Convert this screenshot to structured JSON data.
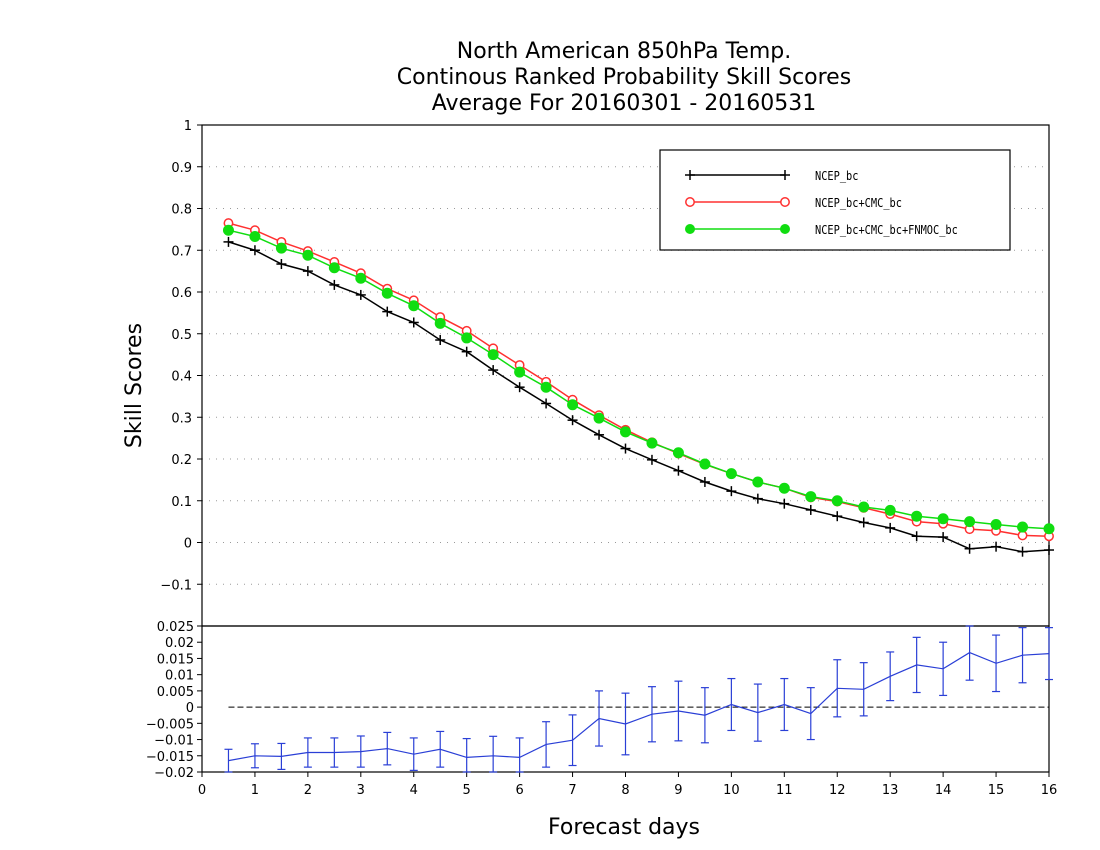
{
  "chart_data": [
    {
      "type": "line",
      "title": [
        "North American 850hPa Temp.",
        "Continous Ranked Probability Skill Scores",
        "Average For 20160301 - 20160531"
      ],
      "ylabel": "Skill Scores",
      "xlim": [
        0,
        16
      ],
      "ylim": [
        -0.2,
        1
      ],
      "yticks": [
        "1",
        "0.9",
        "0.8",
        "0.7",
        "0.6",
        "0.5",
        "0.4",
        "0.3",
        "0.2",
        "0.1",
        "0",
        "−0.1"
      ],
      "grid": true,
      "legend_position": "top-right",
      "x": [
        0.5,
        1,
        1.5,
        2,
        2.5,
        3,
        3.5,
        4,
        4.5,
        5,
        5.5,
        6,
        6.5,
        7,
        7.5,
        8,
        8.5,
        9,
        9.5,
        10,
        10.5,
        11,
        11.5,
        12,
        12.5,
        13,
        13.5,
        14,
        14.5,
        15,
        15.5,
        16
      ],
      "series": [
        {
          "name": "NCEP_bc",
          "color": "#000000",
          "marker": "plus",
          "values": [
            0.72,
            0.7,
            0.667,
            0.65,
            0.617,
            0.593,
            0.553,
            0.527,
            0.485,
            0.457,
            0.413,
            0.372,
            0.333,
            0.293,
            0.258,
            0.225,
            0.198,
            0.172,
            0.145,
            0.123,
            0.105,
            0.093,
            0.078,
            0.063,
            0.048,
            0.035,
            0.015,
            0.013,
            -0.015,
            -0.01,
            -0.022,
            -0.018
          ]
        },
        {
          "name": "NCEP_bc+CMC_bc",
          "color": "#ff3030",
          "marker": "open-circle",
          "values": [
            0.765,
            0.748,
            0.72,
            0.698,
            0.672,
            0.645,
            0.608,
            0.58,
            0.54,
            0.507,
            0.465,
            0.425,
            0.385,
            0.342,
            0.305,
            0.27,
            0.24,
            0.213,
            0.187,
            0.165,
            0.145,
            0.13,
            0.108,
            0.098,
            0.083,
            0.068,
            0.05,
            0.045,
            0.032,
            0.028,
            0.017,
            0.015
          ]
        },
        {
          "name": "NCEP_bc+CMC_bc+FNMOC_bc",
          "color": "#10dd10",
          "marker": "filled-circle",
          "values": [
            0.748,
            0.733,
            0.705,
            0.688,
            0.658,
            0.633,
            0.597,
            0.567,
            0.525,
            0.49,
            0.45,
            0.408,
            0.372,
            0.33,
            0.298,
            0.265,
            0.238,
            0.215,
            0.188,
            0.165,
            0.145,
            0.13,
            0.11,
            0.1,
            0.085,
            0.077,
            0.063,
            0.057,
            0.05,
            0.043,
            0.037,
            0.033
          ]
        }
      ]
    },
    {
      "type": "line",
      "xlabel": "Forecast days",
      "xlim": [
        0,
        16
      ],
      "xticks": [
        "0",
        "1",
        "2",
        "3",
        "4",
        "5",
        "6",
        "7",
        "8",
        "9",
        "10",
        "11",
        "12",
        "13",
        "14",
        "15",
        "16"
      ],
      "ylim": [
        -0.02,
        0.025
      ],
      "yticks": [
        "0.025",
        "0.02",
        "0.015",
        "0.01",
        "0.005",
        "0",
        "−0.005",
        "−0.01",
        "−0.015",
        "−0.02"
      ],
      "zero_line": true,
      "series": [
        {
          "color": "#2a3fd6",
          "x": [
            0.5,
            1,
            1.5,
            2,
            2.5,
            3,
            3.5,
            4,
            4.5,
            5,
            5.5,
            6,
            6.5,
            7,
            7.5,
            8,
            8.5,
            9,
            9.5,
            10,
            10.5,
            11,
            11.5,
            12,
            12.5,
            13,
            13.5,
            14,
            14.5,
            15,
            15.5,
            16
          ],
          "values": [
            -0.0165,
            -0.015,
            -0.0152,
            -0.014,
            -0.014,
            -0.0137,
            -0.0128,
            -0.0145,
            -0.013,
            -0.0155,
            -0.015,
            -0.0155,
            -0.0115,
            -0.0102,
            -0.0035,
            -0.0052,
            -0.0022,
            -0.0012,
            -0.0025,
            0.0008,
            -0.0017,
            0.0008,
            -0.002,
            0.0058,
            0.0055,
            0.0095,
            0.013,
            0.0118,
            0.0168,
            0.0135,
            0.016,
            0.0165
          ],
          "error": [
            0.0035,
            0.0037,
            0.004,
            0.0045,
            0.0045,
            0.0048,
            0.005,
            0.005,
            0.0055,
            0.0058,
            0.006,
            0.006,
            0.007,
            0.0078,
            0.0085,
            0.0095,
            0.0085,
            0.0092,
            0.0085,
            0.008,
            0.0088,
            0.008,
            0.008,
            0.0088,
            0.0082,
            0.0075,
            0.0085,
            0.0082,
            0.0085,
            0.0087,
            0.0085,
            0.008
          ]
        }
      ]
    }
  ]
}
